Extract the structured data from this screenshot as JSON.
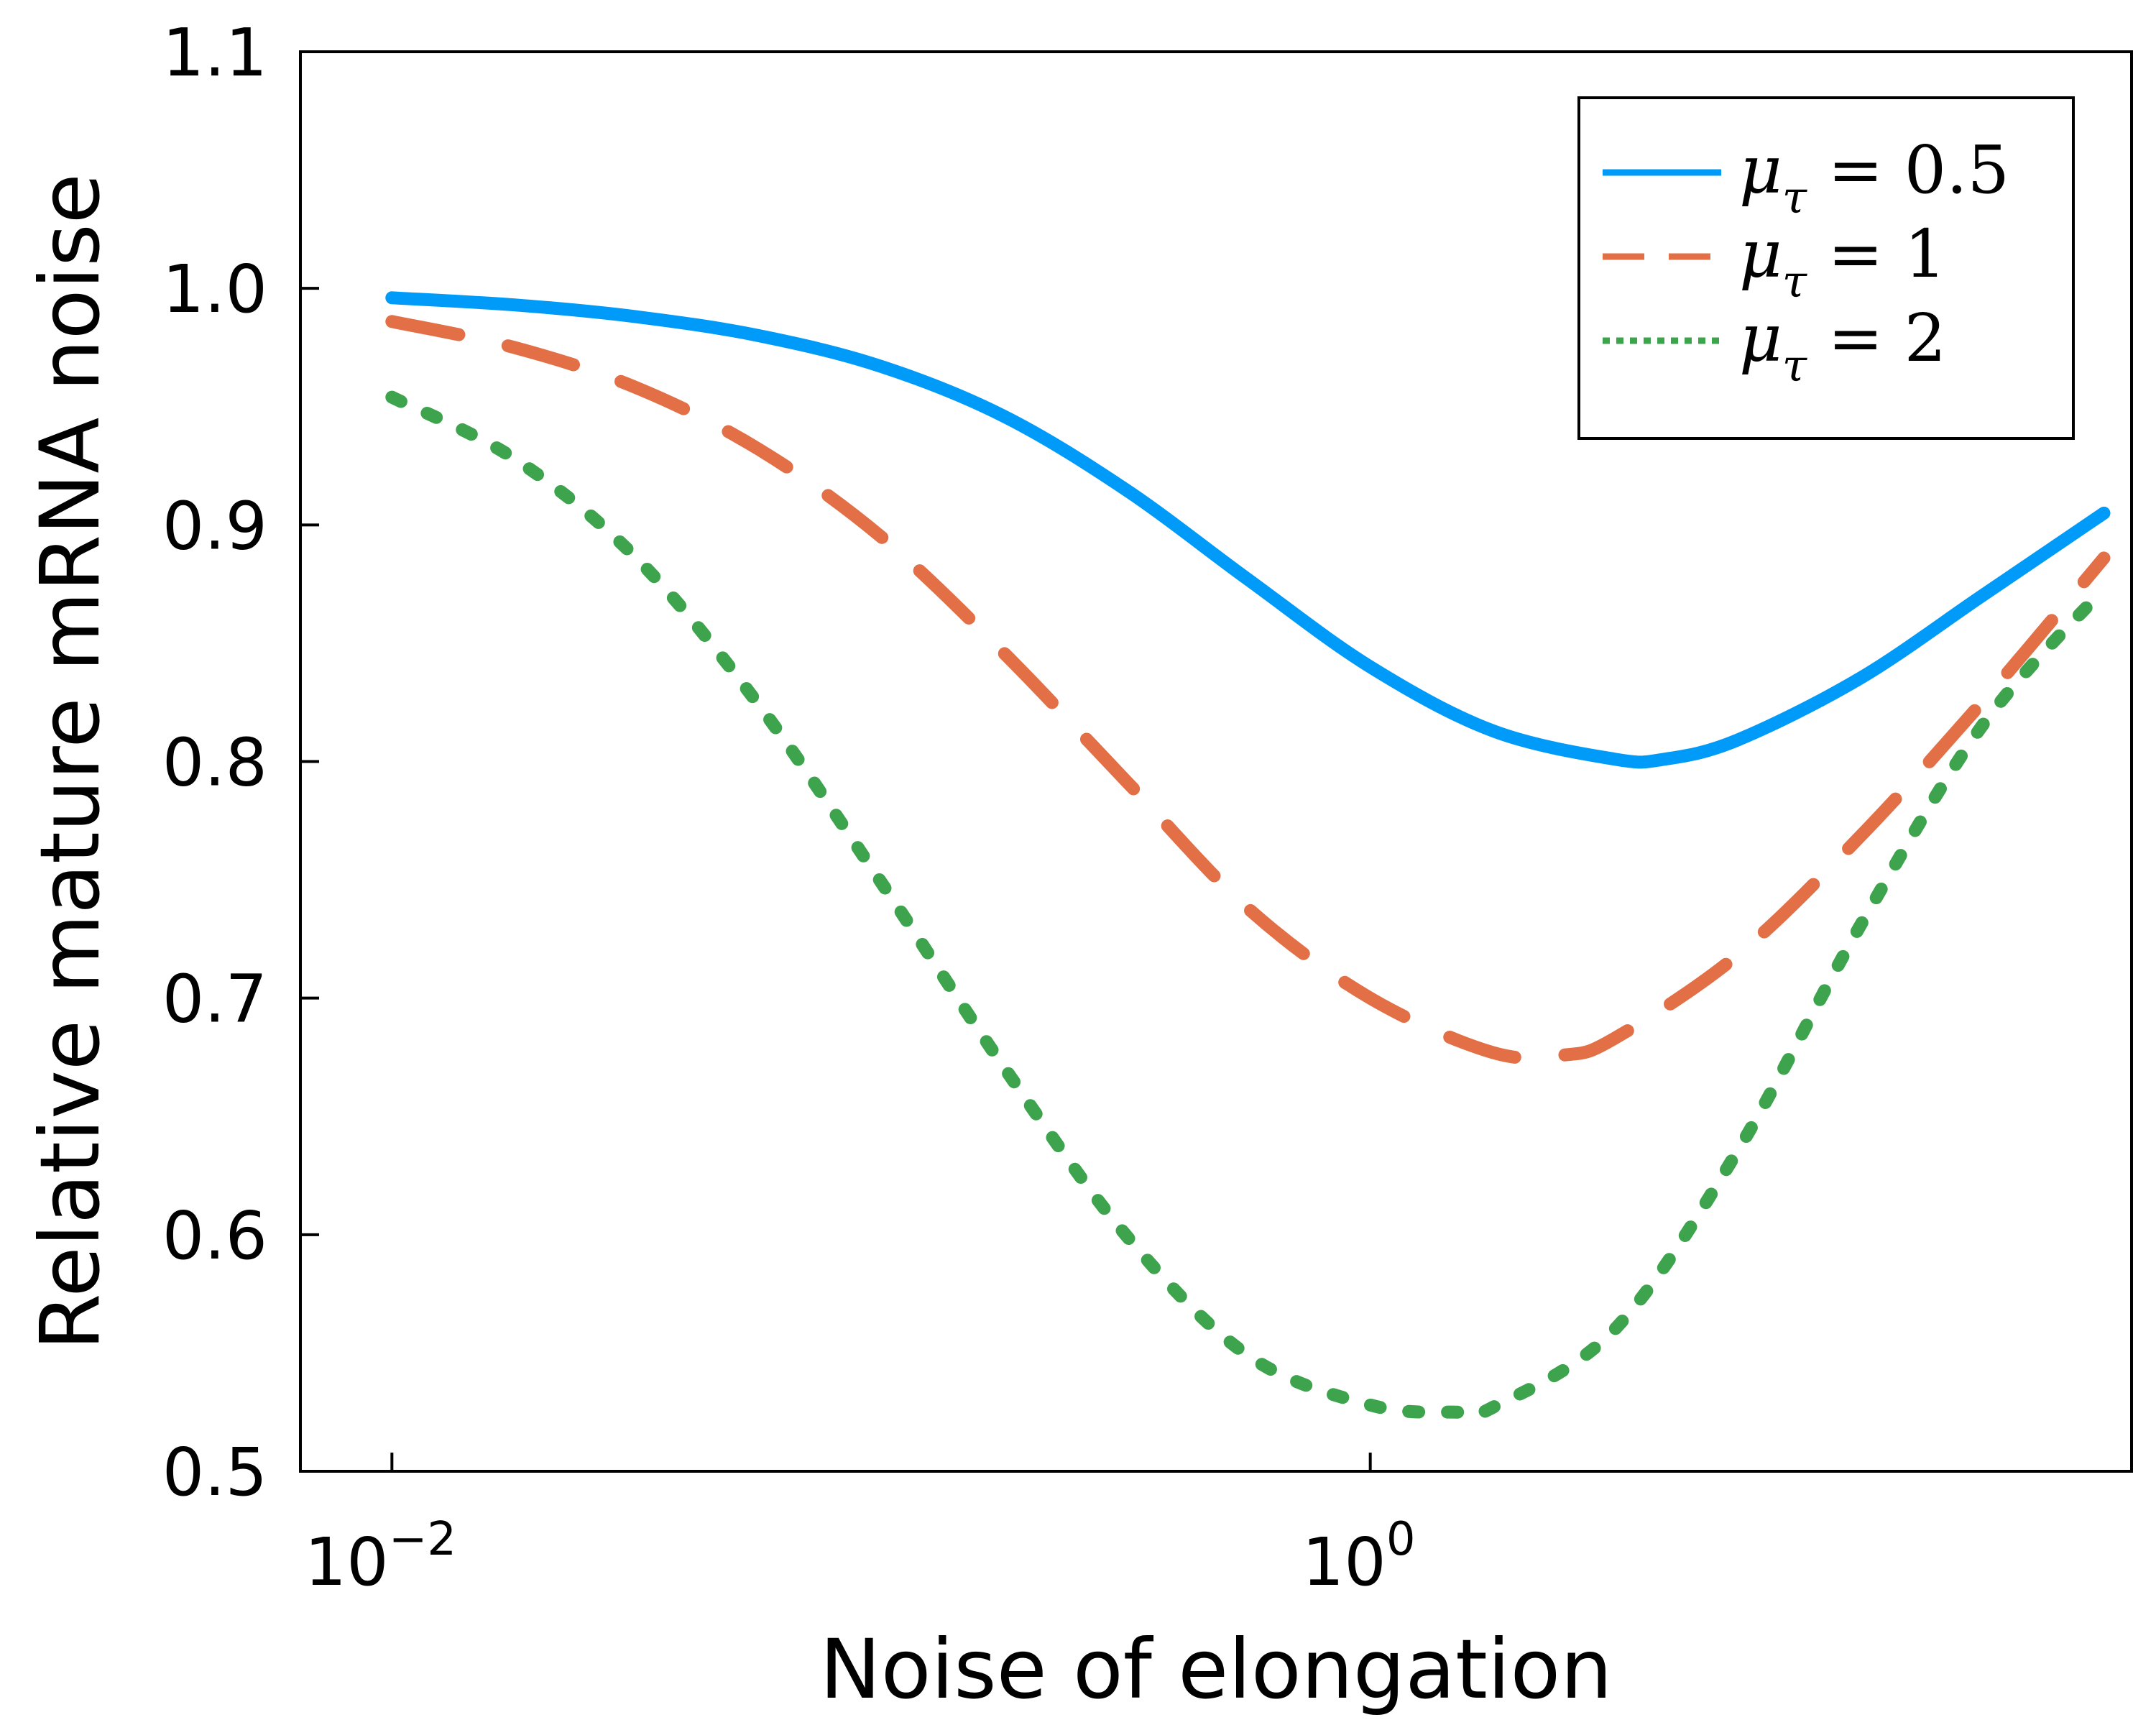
{
  "chart_data": {
    "type": "line",
    "xlabel": "Noise of elongation",
    "ylabel": "Relative mature mRNA noise",
    "x_scale": "log",
    "xlim": [
      0.0065,
      36
    ],
    "ylim": [
      0.5,
      1.1
    ],
    "x_ticks": [
      {
        "value": 0.01,
        "base": "10",
        "exp": "−2"
      },
      {
        "value": 1,
        "base": "10",
        "exp": "0"
      }
    ],
    "y_ticks": [
      {
        "value": 0.5,
        "label": "0.5"
      },
      {
        "value": 0.6,
        "label": "0.6"
      },
      {
        "value": 0.7,
        "label": "0.7"
      },
      {
        "value": 0.8,
        "label": "0.8"
      },
      {
        "value": 0.9,
        "label": "0.9"
      },
      {
        "value": 1.0,
        "label": "1.0"
      },
      {
        "value": 1.1,
        "label": "1.1"
      }
    ],
    "grid": false,
    "legend_position": "top-right",
    "series": [
      {
        "name": "μ_τ = 0.5",
        "legend_mu": "μ",
        "legend_sub": "τ",
        "legend_rest": " = 0.5",
        "color": "#009af9",
        "style": "solid",
        "x": [
          0.01,
          0.0178,
          0.0316,
          0.0562,
          0.1,
          0.178,
          0.316,
          0.562,
          1.0,
          1.78,
          3.16,
          4.0,
          5.62,
          10.0,
          17.8,
          31.6
        ],
        "y": [
          0.996,
          0.993,
          0.988,
          0.98,
          0.967,
          0.946,
          0.915,
          0.877,
          0.84,
          0.813,
          0.801,
          0.801,
          0.809,
          0.835,
          0.87,
          0.905
        ]
      },
      {
        "name": "μ_τ = 1",
        "legend_mu": "μ",
        "legend_sub": "τ",
        "legend_rest": " = 1",
        "color": "#e26f46",
        "style": "dashed",
        "x": [
          0.01,
          0.0178,
          0.0316,
          0.0562,
          0.1,
          0.178,
          0.316,
          0.562,
          1.0,
          1.78,
          2.5,
          3.16,
          5.62,
          10.0,
          17.8,
          31.6
        ],
        "y": [
          0.986,
          0.975,
          0.958,
          0.932,
          0.895,
          0.846,
          0.792,
          0.738,
          0.7,
          0.677,
          0.676,
          0.683,
          0.718,
          0.768,
          0.825,
          0.886
        ]
      },
      {
        "name": "μ_τ = 2",
        "legend_mu": "μ",
        "legend_sub": "τ",
        "legend_rest": " = 2",
        "color": "#3da44d",
        "style": "dotted",
        "x": [
          0.01,
          0.0178,
          0.0316,
          0.0562,
          0.1,
          0.178,
          0.316,
          0.562,
          1.0,
          1.5,
          1.78,
          3.16,
          5.62,
          10.0,
          17.8,
          31.6
        ],
        "y": [
          0.954,
          0.928,
          0.886,
          0.824,
          0.749,
          0.671,
          0.6,
          0.549,
          0.528,
          0.525,
          0.527,
          0.56,
          0.635,
          0.73,
          0.815,
          0.873
        ]
      }
    ]
  }
}
